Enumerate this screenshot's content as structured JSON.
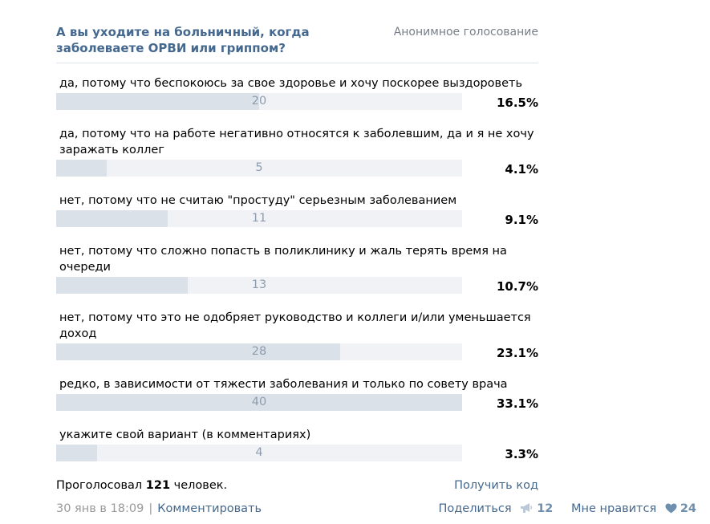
{
  "poll": {
    "question": "А вы уходите на больничный, когда заболеваете ОРВИ или гриппом?",
    "type_label": "Анонимное голосование",
    "answers": [
      {
        "text": "да, потому что беспокоюсь за свое здоровье и хочу поскорее выздороветь",
        "count": "20",
        "percent": "16.5%",
        "fill": 0.5
      },
      {
        "text": "да, потому что на работе негативно относятся к заболевшим, да и я не хочу заражать коллег",
        "count": "5",
        "percent": "4.1%",
        "fill": 0.125
      },
      {
        "text": "нет, потому что не считаю \"простуду\" серьезным заболеванием",
        "count": "11",
        "percent": "9.1%",
        "fill": 0.275
      },
      {
        "text": "нет, потому что сложно попасть в поликлинику и жаль терять время на очереди",
        "count": "13",
        "percent": "10.7%",
        "fill": 0.325
      },
      {
        "text": "нет, потому что это не одобряет руководство и коллеги и/или уменьшается доход",
        "count": "28",
        "percent": "23.1%",
        "fill": 0.7
      },
      {
        "text": "редко, в зависимости от тяжести заболевания и только по совету врача",
        "count": "40",
        "percent": "33.1%",
        "fill": 1.0
      },
      {
        "text": "укажите свой вариант (в комментариях)",
        "count": "4",
        "percent": "3.3%",
        "fill": 0.1
      }
    ],
    "voted_prefix": "Проголосовал",
    "voted_count": "121",
    "voted_suffix": "человек.",
    "get_code_label": "Получить код"
  },
  "post": {
    "date": "30 янв в 18:09",
    "separator": "|",
    "comment_label": "Комментировать",
    "share_label": "Поделиться",
    "share_icon": "megaphone-icon",
    "share_count": "12",
    "like_label": "Мне нравится",
    "like_icon": "heart-icon",
    "like_count": "24"
  },
  "colors": {
    "link": "#45688e",
    "bar_fill": "#dae1e8",
    "bar_bg": "#f0f2f5",
    "bar_count": "#8e9cae",
    "muted": "#999999"
  }
}
